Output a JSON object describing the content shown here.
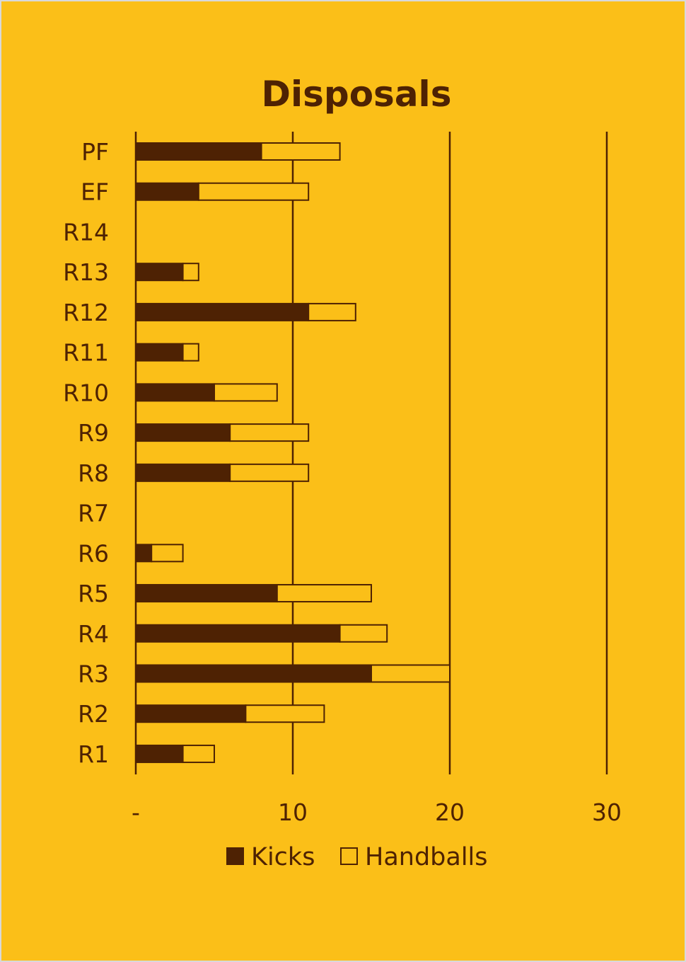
{
  "chart_data": {
    "type": "bar",
    "orientation": "horizontal",
    "stacked": true,
    "title": "Disposals",
    "xlabel": "",
    "ylabel": "",
    "xlim": [
      0,
      30
    ],
    "x_ticks": [
      0,
      10,
      20,
      30
    ],
    "x_tick_labels": [
      "-",
      "10",
      "20",
      "30"
    ],
    "grid": true,
    "legend_position": "bottom",
    "categories": [
      "PF",
      "EF",
      "R14",
      "R13",
      "R12",
      "R11",
      "R10",
      "R9",
      "R8",
      "R7",
      "R6",
      "R5",
      "R4",
      "R3",
      "R2",
      "R1"
    ],
    "series": [
      {
        "name": "Kicks",
        "color": "#4E2203",
        "values": [
          8,
          4,
          0,
          3,
          11,
          3,
          5,
          6,
          6,
          0,
          1,
          9,
          13,
          15,
          7,
          3
        ]
      },
      {
        "name": "Handballs",
        "color": "#FBBF18",
        "values": [
          5,
          7,
          0,
          1,
          3,
          1,
          4,
          5,
          5,
          0,
          2,
          6,
          3,
          5,
          5,
          2
        ]
      }
    ]
  },
  "colors": {
    "background": "#FBBF18",
    "ink": "#4E2203"
  }
}
